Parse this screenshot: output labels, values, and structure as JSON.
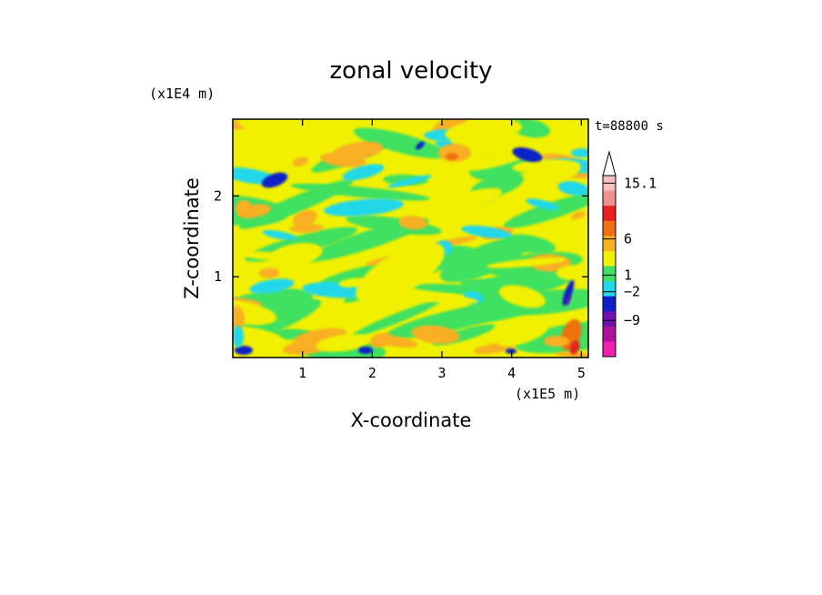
{
  "chart_data": {
    "type": "heatmap",
    "title": "zonal velocity",
    "xlabel": "X-coordinate",
    "ylabel": "Z-coordinate",
    "x_unit": "(x1E5 m)",
    "y_unit": "(x1E4 m)",
    "time_label": "t=88800 s",
    "xlim": [
      0,
      5.1
    ],
    "ylim": [
      0,
      2.95
    ],
    "x_ticks": [
      "1",
      "2",
      "3",
      "4",
      "5"
    ],
    "y_ticks": [
      "1",
      "2"
    ],
    "colorbar": {
      "labels": [
        "15.1",
        "6",
        "1",
        "-2",
        "-9"
      ],
      "levels_top_to_bottom": [
        {
          "color": "#f8c0c0"
        },
        {
          "color": "#f09090"
        },
        {
          "color": "#e82020"
        },
        {
          "color": "#f07010"
        },
        {
          "color": "#f8b020"
        },
        {
          "color": "#f0f000"
        },
        {
          "color": "#40e060"
        },
        {
          "color": "#20d8e8"
        },
        {
          "color": "#1020c8"
        },
        {
          "color": "#7010b0"
        },
        {
          "color": "#b010a0"
        },
        {
          "color": "#f020b0"
        }
      ]
    }
  }
}
